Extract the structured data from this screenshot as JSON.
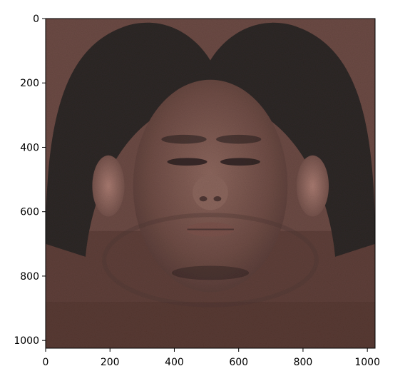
{
  "chart_data": {
    "type": "heatmap",
    "image": {
      "description_icon": "uv-texture-face-image",
      "width": 1024,
      "height": 1024,
      "palette": {
        "background_skin": "#6b4a44",
        "skin_light": "#8a655c",
        "skin_shadow": "#4e3633",
        "hair": "#2e2726",
        "hair_highlight": "#3d3433",
        "ear": "#9a6b62",
        "lower_band": "#5e3f39",
        "bottom_band": "#583a33",
        "eye_dark": "#2a2020",
        "lip": "#7a524b"
      }
    },
    "xlim": [
      0,
      1024
    ],
    "ylim": [
      1024,
      0
    ],
    "x_ticks": [
      {
        "value": 0,
        "label": "0"
      },
      {
        "value": 200,
        "label": "200"
      },
      {
        "value": 400,
        "label": "400"
      },
      {
        "value": 600,
        "label": "600"
      },
      {
        "value": 800,
        "label": "800"
      },
      {
        "value": 1000,
        "label": "1000"
      }
    ],
    "y_ticks": [
      {
        "value": 0,
        "label": "0"
      },
      {
        "value": 200,
        "label": "200"
      },
      {
        "value": 400,
        "label": "400"
      },
      {
        "value": 600,
        "label": "600"
      },
      {
        "value": 800,
        "label": "800"
      },
      {
        "value": 1000,
        "label": "1000"
      }
    ],
    "title": "",
    "xlabel": "",
    "ylabel": "",
    "grid": false
  }
}
